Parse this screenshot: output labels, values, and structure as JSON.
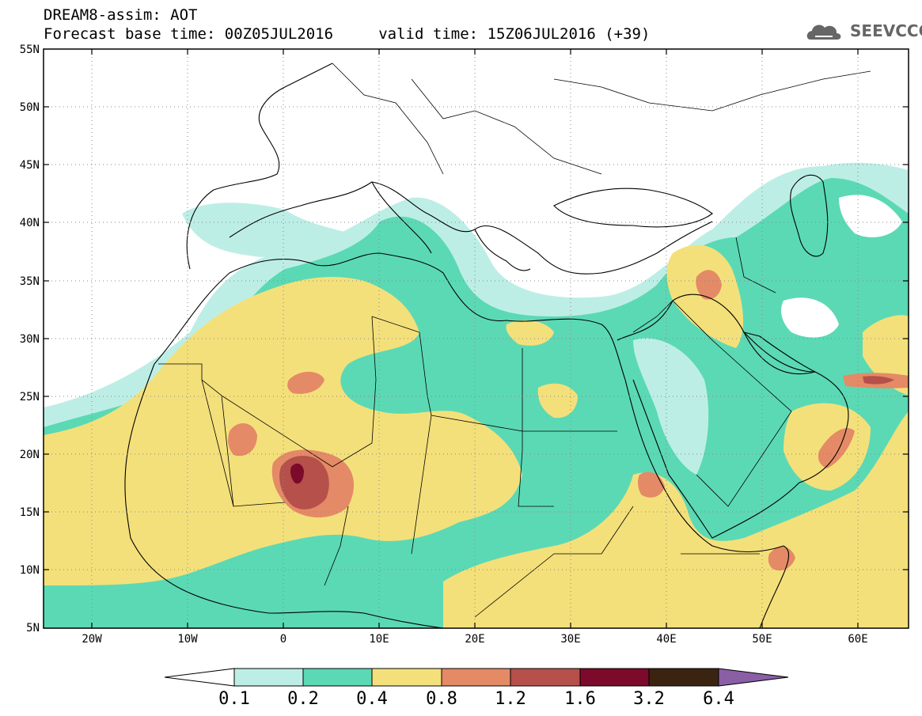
{
  "header": {
    "line1": "DREAM8-assim: AOT",
    "line2": "Forecast base time: 00Z05JUL2016     valid time: 15Z06JUL2016 (+39)",
    "logo_text": "SEEVCCC"
  },
  "axes": {
    "lat_labels": [
      "55N",
      "50N",
      "45N",
      "40N",
      "35N",
      "30N",
      "25N",
      "20N",
      "15N",
      "10N",
      "5N"
    ],
    "lon_labels": [
      "20W",
      "10W",
      "0",
      "10E",
      "20E",
      "30E",
      "40E",
      "50E",
      "60E"
    ],
    "lat_range": [
      5,
      55
    ],
    "lon_range": [
      -25,
      65
    ]
  },
  "colorbar": {
    "levels": [
      "0.1",
      "0.2",
      "0.4",
      "0.8",
      "1.2",
      "1.6",
      "3.2",
      "6.4"
    ],
    "colors": [
      "#ffffff",
      "#bdeee6",
      "#5bd9b4",
      "#f4e07a",
      "#e48a66",
      "#b5504a",
      "#7c0a2a",
      "#3a2410",
      "#8a5fa6"
    ]
  },
  "map_colors": {
    "light": "#bdeee6",
    "green": "#5bd9b4",
    "yellow": "#f4e07a",
    "orange": "#e48a66",
    "brown": "#b5504a",
    "maroon": "#7c0a2a"
  }
}
